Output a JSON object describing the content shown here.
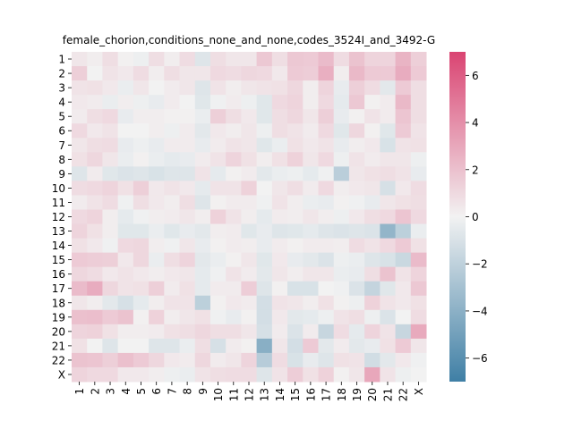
{
  "chart_data": {
    "type": "heatmap",
    "title": "female_chorion,conditions_none_and_none,codes_3524I_and_3492-G",
    "xlabel": "",
    "ylabel": "",
    "x_labels": [
      "1",
      "2",
      "3",
      "4",
      "5",
      "6",
      "7",
      "8",
      "9",
      "10",
      "11",
      "12",
      "13",
      "14",
      "15",
      "16",
      "17",
      "18",
      "19",
      "20",
      "21",
      "22",
      "X"
    ],
    "y_labels": [
      "1",
      "2",
      "3",
      "4",
      "5",
      "6",
      "7",
      "8",
      "9",
      "10",
      "11",
      "12",
      "13",
      "14",
      "15",
      "16",
      "17",
      "18",
      "19",
      "20",
      "21",
      "22",
      "X"
    ],
    "colorbar": {
      "vmin": -7,
      "vmax": 7,
      "ticks": [
        -6,
        -4,
        -2,
        0,
        2,
        4,
        6
      ],
      "low_color": "#3f7fa5",
      "mid_color": "#f2f2f2",
      "high_color": "#da4472"
    },
    "values": [
      [
        0.5,
        0.2,
        0.8,
        0.1,
        -0.2,
        0.8,
        0.2,
        0.9,
        -0.8,
        0.8,
        0.5,
        0.5,
        1.7,
        0.8,
        1.7,
        1.6,
        2.2,
        0.9,
        1.9,
        1.2,
        1.2,
        2.5,
        1.4
      ],
      [
        1.4,
        0.0,
        0.6,
        0.4,
        0.9,
        0.2,
        0.8,
        0.5,
        0.5,
        1.0,
        0.9,
        1.1,
        1.0,
        0.4,
        1.6,
        1.5,
        2.7,
        0.2,
        2.3,
        1.6,
        1.6,
        2.8,
        1.6
      ],
      [
        0.6,
        0.7,
        0.4,
        -0.3,
        0.5,
        0.0,
        0.3,
        0.5,
        -0.8,
        0.6,
        0.2,
        0.5,
        0.6,
        0.7,
        1.1,
        0.2,
        1.2,
        -0.4,
        1.4,
        0.9,
        -0.6,
        1.6,
        0.8
      ],
      [
        0.4,
        0.3,
        -0.3,
        0.2,
        -0.2,
        -0.4,
        0.3,
        0.0,
        -0.7,
        -0.1,
        0.3,
        -0.2,
        -0.7,
        1.0,
        1.2,
        0.2,
        1.0,
        -0.5,
        1.7,
        0.1,
        0.3,
        2.3,
        0.8
      ],
      [
        0.3,
        0.8,
        1.0,
        -0.4,
        0.2,
        0.2,
        0.1,
        0.1,
        -0.3,
        1.4,
        0.8,
        0.4,
        -0.7,
        0.8,
        1.1,
        0.5,
        1.4,
        -0.4,
        0.1,
        0.6,
        0.3,
        1.8,
        0.8
      ],
      [
        1.0,
        0.4,
        0.6,
        0.0,
        0.0,
        0.2,
        -0.2,
        0.3,
        -0.6,
        0.4,
        0.2,
        0.5,
        -0.2,
        0.8,
        0.6,
        0.3,
        1.0,
        -0.7,
        1.1,
        0.1,
        -0.7,
        1.6,
        0.6
      ],
      [
        0.5,
        0.8,
        0.9,
        -0.4,
        -0.2,
        -0.4,
        0.3,
        0.3,
        -0.4,
        0.3,
        0.6,
        0.5,
        -0.7,
        -0.3,
        0.7,
        0.4,
        0.6,
        -0.4,
        0.2,
        0.4,
        -1.0,
        0.6,
        0.7
      ],
      [
        0.7,
        1.1,
        0.5,
        -0.3,
        0.1,
        -0.3,
        -0.5,
        -0.4,
        0.3,
        0.6,
        1.2,
        0.7,
        0.2,
        0.7,
        1.3,
        0.5,
        1.0,
        -0.2,
        0.6,
        0.3,
        0.5,
        0.5,
        -0.2
      ],
      [
        -0.8,
        0.3,
        -0.7,
        -0.9,
        -0.8,
        -1.0,
        -0.8,
        -0.8,
        0.6,
        -0.5,
        0.1,
        0.3,
        -0.6,
        -0.3,
        -0.2,
        -0.5,
        -0.1,
        -2.2,
        0.5,
        0.7,
        0.8,
        0.6,
        -0.4
      ],
      [
        0.9,
        1.0,
        1.2,
        0.7,
        1.4,
        0.4,
        0.6,
        0.4,
        -0.5,
        0.6,
        0.6,
        1.3,
        0.0,
        0.5,
        0.8,
        0.3,
        1.0,
        0.2,
        0.4,
        0.5,
        -1.1,
        0.4,
        0.9
      ],
      [
        0.3,
        0.6,
        0.9,
        -0.1,
        0.8,
        0.4,
        0.2,
        0.8,
        -0.8,
        0.1,
        0.3,
        0.3,
        -0.1,
        0.6,
        0.2,
        -0.3,
        -0.4,
        0.1,
        -0.1,
        -0.4,
        0.5,
        0.7,
        0.8
      ],
      [
        1.0,
        1.2,
        0.2,
        -0.5,
        -0.1,
        0.2,
        0.3,
        0.5,
        0.2,
        1.3,
        0.6,
        0.2,
        -0.5,
        0.3,
        0.2,
        0.5,
        0.2,
        -0.2,
        0.4,
        0.8,
        1.0,
        1.8,
        1.0
      ],
      [
        1.2,
        0.7,
        0.2,
        -0.7,
        -0.7,
        -0.3,
        -0.7,
        -0.4,
        -0.6,
        0.2,
        0.3,
        -0.7,
        -0.4,
        -0.8,
        -0.7,
        -0.5,
        -0.8,
        -0.9,
        -0.8,
        -0.9,
        -3.7,
        -2.1,
        -0.3
      ],
      [
        0.7,
        0.4,
        -0.1,
        1.0,
        1.1,
        0.2,
        -0.1,
        0.5,
        -0.4,
        0.1,
        0.3,
        0.2,
        -0.4,
        0.3,
        0.1,
        0.3,
        0.3,
        0.2,
        0.9,
        0.6,
        1.0,
        1.6,
        0.7
      ],
      [
        1.6,
        1.5,
        1.4,
        0.4,
        1.1,
        -0.3,
        0.8,
        1.2,
        -0.6,
        -0.3,
        0.1,
        0.5,
        -0.7,
        0.4,
        -0.4,
        -0.6,
        -0.9,
        -0.2,
        -0.3,
        -0.8,
        -1.0,
        -1.6,
        2.2
      ],
      [
        1.1,
        0.9,
        0.4,
        0.6,
        0.4,
        0.2,
        0.4,
        0.5,
        -0.5,
        -0.1,
        0.6,
        0.3,
        -0.6,
        0.5,
        0.2,
        0.5,
        0.5,
        -0.3,
        -0.4,
        0.8,
        1.9,
        0.6,
        1.2
      ],
      [
        2.2,
        2.8,
        1.1,
        0.6,
        0.7,
        1.4,
        0.3,
        0.7,
        -0.5,
        0.3,
        0.3,
        1.5,
        -0.8,
        0.1,
        -1.0,
        -1.0,
        0.0,
        -0.1,
        -0.9,
        -1.8,
        -0.7,
        0.4,
        1.7
      ],
      [
        0.5,
        0.2,
        -0.6,
        -1.1,
        -0.5,
        0.2,
        0.6,
        0.6,
        -2.1,
        0.1,
        0.4,
        0.3,
        -1.2,
        0.6,
        0.5,
        0.2,
        0.7,
        0.1,
        -0.2,
        1.3,
        0.6,
        0.4,
        0.7
      ],
      [
        2.0,
        2.1,
        1.6,
        1.9,
        0.1,
        1.3,
        0.2,
        0.5,
        0.7,
        -0.1,
        -0.4,
        0.1,
        -1.2,
        0.4,
        -0.6,
        -0.5,
        -0.2,
        0.6,
        0.8,
        -0.2,
        -0.9,
        0.0,
        0.9
      ],
      [
        1.2,
        1.3,
        0.7,
        0.2,
        0.2,
        0.3,
        0.7,
        0.8,
        1.1,
        0.8,
        0.8,
        0.5,
        -1.1,
        0.3,
        -0.9,
        0.3,
        -1.7,
        0.9,
        -0.5,
        1.2,
        0.6,
        -1.7,
        2.9
      ],
      [
        0.7,
        0.0,
        -0.8,
        0.0,
        0.0,
        -0.8,
        -0.8,
        -0.3,
        0.8,
        -1.1,
        0.3,
        0.1,
        -4.1,
        0.5,
        -1.2,
        1.6,
        -0.6,
        0.3,
        -0.6,
        -0.4,
        0.7,
        1.6,
        0.5
      ],
      [
        1.9,
        1.8,
        1.4,
        2.0,
        1.6,
        1.1,
        0.4,
        0.3,
        1.1,
        0.3,
        0.5,
        1.2,
        -2.3,
        0.9,
        -1.0,
        -0.4,
        -0.8,
        0.7,
        0.6,
        -1.3,
        -0.6,
        0.4,
        -0.1
      ],
      [
        1.2,
        1.0,
        1.0,
        0.4,
        0.4,
        0.2,
        -0.2,
        -0.3,
        0.6,
        0.8,
        0.9,
        0.9,
        -0.8,
        0.6,
        1.5,
        0.7,
        1.3,
        0.1,
        0.5,
        3.0,
        0.6,
        -0.2,
        0.0
      ]
    ]
  }
}
